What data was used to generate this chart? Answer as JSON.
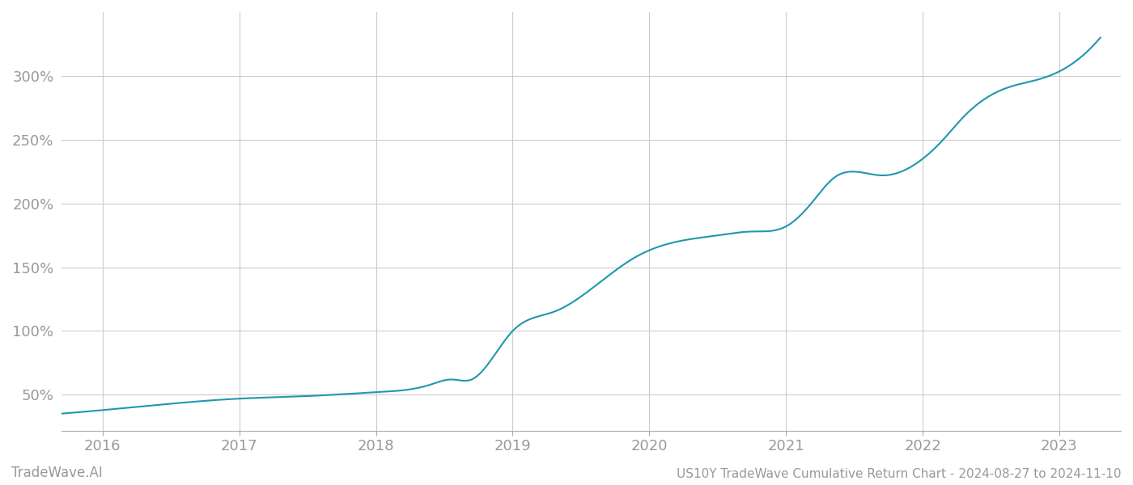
{
  "title": "US10Y TradeWave Cumulative Return Chart - 2024-08-27 to 2024-11-10",
  "watermark": "TradeWave.AI",
  "line_color": "#2196b0",
  "background_color": "#ffffff",
  "grid_color": "#cccccc",
  "axis_label_color": "#999999",
  "x_ticks": [
    2016,
    2017,
    2018,
    2019,
    2020,
    2021,
    2022,
    2023
  ],
  "y_ticks": [
    50,
    100,
    150,
    200,
    250,
    300
  ],
  "xlim": [
    2015.7,
    2023.45
  ],
  "ylim": [
    22,
    350
  ],
  "x_data": [
    2015.67,
    2016.0,
    2016.5,
    2017.0,
    2017.5,
    2018.0,
    2018.4,
    2018.55,
    2018.7,
    2019.0,
    2019.3,
    2019.6,
    2019.9,
    2020.2,
    2020.5,
    2020.75,
    2021.0,
    2021.2,
    2021.35,
    2021.7,
    2022.0,
    2022.15,
    2022.3,
    2022.6,
    2022.9,
    2023.1,
    2023.3
  ],
  "y_data": [
    35,
    38,
    43,
    47,
    49,
    52,
    58,
    62,
    62,
    100,
    115,
    135,
    158,
    170,
    175,
    178,
    182,
    202,
    220,
    222,
    235,
    250,
    268,
    290,
    299,
    310,
    330
  ]
}
